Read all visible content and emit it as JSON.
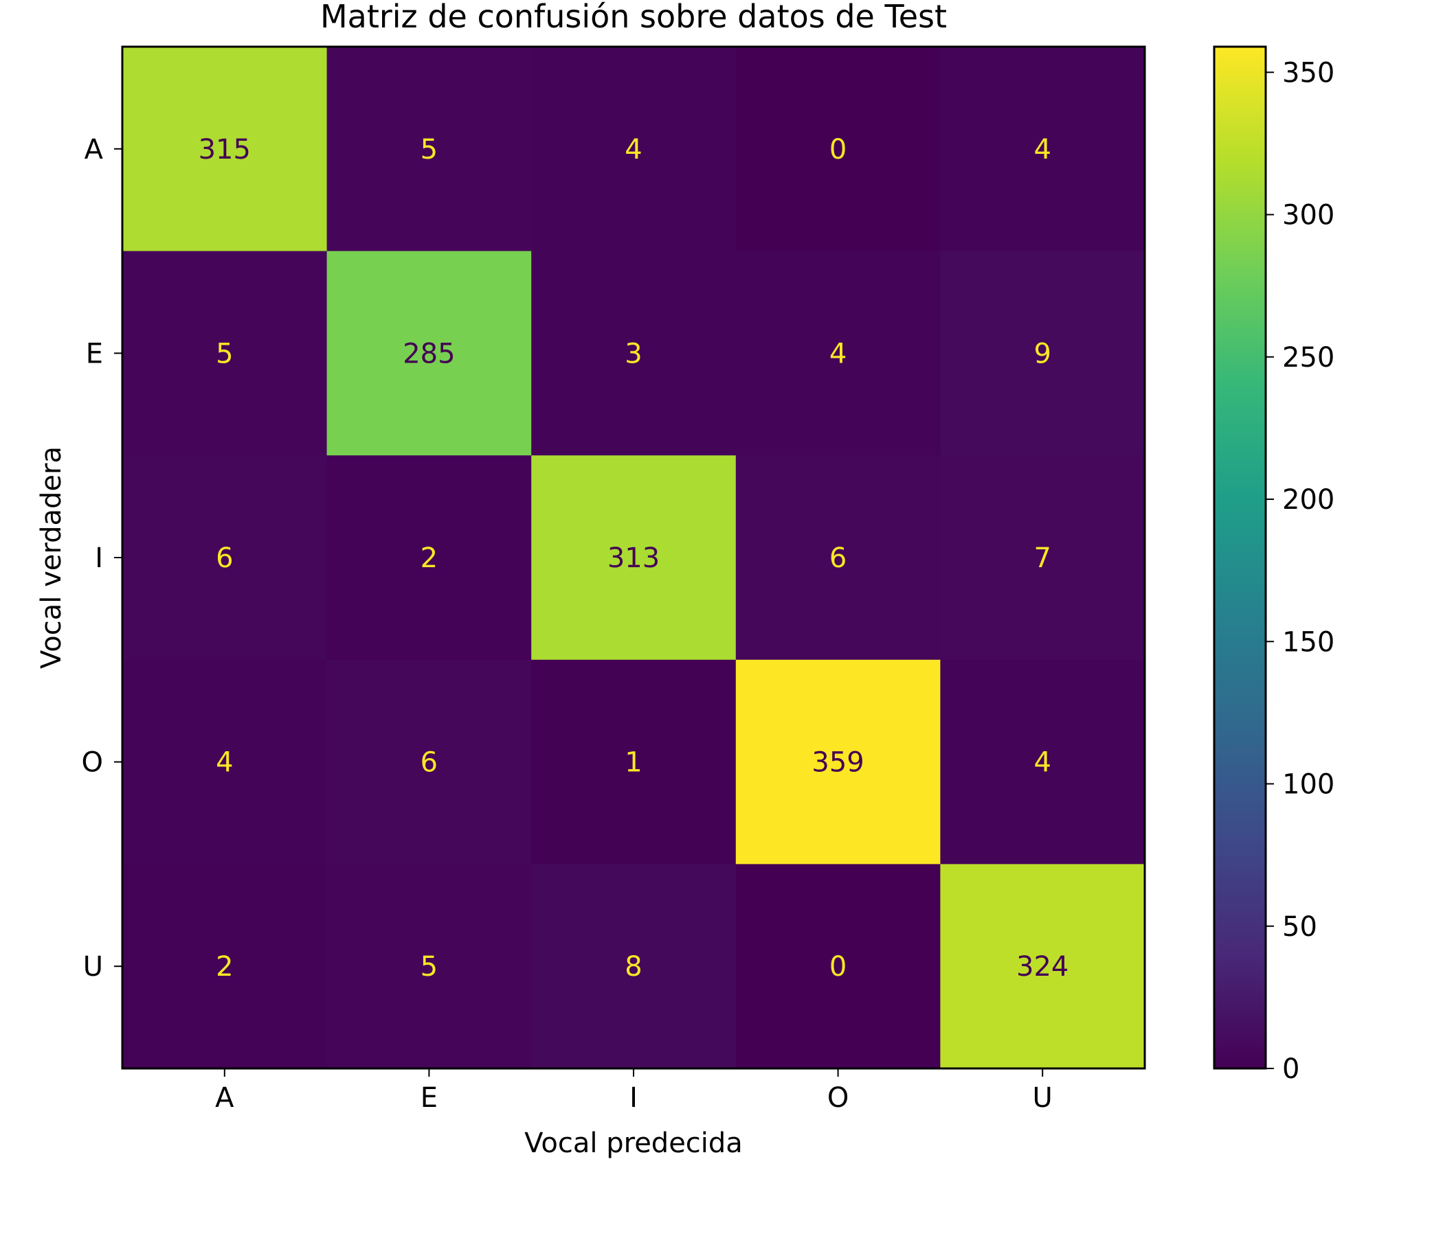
{
  "chart_data": {
    "type": "heatmap",
    "title": "Matriz de confusión sobre datos de Test",
    "xlabel": "Vocal predecida",
    "ylabel": "Vocal verdadera",
    "x_categories": [
      "A",
      "E",
      "I",
      "O",
      "U"
    ],
    "y_categories": [
      "A",
      "E",
      "I",
      "O",
      "U"
    ],
    "values": [
      [
        315,
        5,
        4,
        0,
        4
      ],
      [
        5,
        285,
        3,
        4,
        9
      ],
      [
        6,
        2,
        313,
        6,
        7
      ],
      [
        4,
        6,
        1,
        359,
        4
      ],
      [
        2,
        5,
        8,
        0,
        324
      ]
    ],
    "colormap": "viridis",
    "vmin": 0,
    "vmax": 359,
    "colorbar_ticks": [
      0,
      50,
      100,
      150,
      200,
      250,
      300,
      350
    ],
    "annotation_colors": {
      "light": "#fde725",
      "dark": "#440154"
    }
  }
}
